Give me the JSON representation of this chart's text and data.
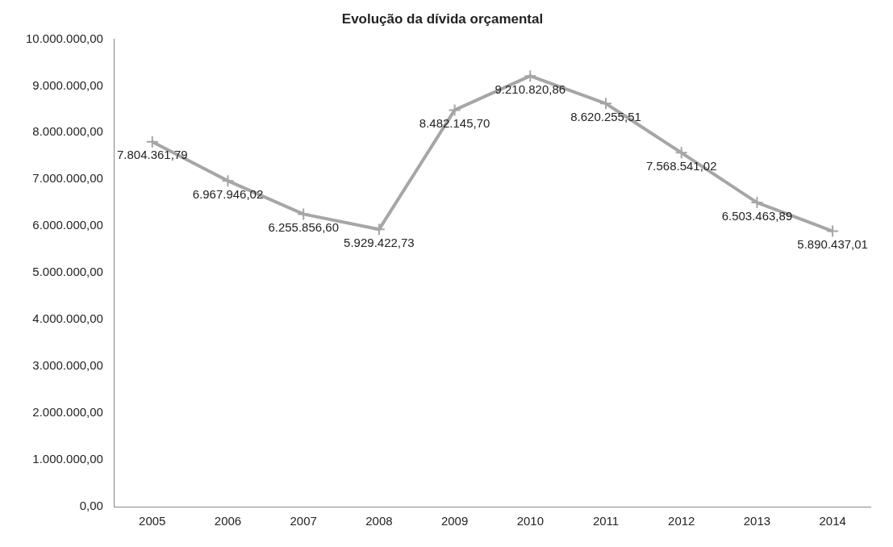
{
  "chart_data": {
    "type": "line",
    "title": "Evolução da dívida orçamental",
    "categories": [
      "2005",
      "2006",
      "2007",
      "2008",
      "2009",
      "2010",
      "2011",
      "2012",
      "2013",
      "2014"
    ],
    "series": [
      {
        "color": "#a6a6a6",
        "values": [
          7804361.79,
          6967946.02,
          6255856.6,
          5929422.73,
          8482145.7,
          9210820.86,
          8620255.51,
          7568541.02,
          6503463.89,
          5890437.01
        ],
        "value_labels": [
          "7.804.361,79",
          "6.967.946,02",
          "6.255.856,60",
          "5.929.422,73",
          "8.482.145,70",
          "9.210.820,86",
          "8.620.255,51",
          "7.568.541,02",
          "6.503.463,89",
          "5.890.437,01"
        ]
      }
    ],
    "ylim": [
      0,
      10000000
    ],
    "yticks": [
      {
        "value": 0,
        "label": "0,00"
      },
      {
        "value": 1000000,
        "label": "1.000.000,00"
      },
      {
        "value": 2000000,
        "label": "2.000.000,00"
      },
      {
        "value": 3000000,
        "label": "3.000.000,00"
      },
      {
        "value": 4000000,
        "label": "4.000.000,00"
      },
      {
        "value": 5000000,
        "label": "5.000.000,00"
      },
      {
        "value": 6000000,
        "label": "6.000.000,00"
      },
      {
        "value": 7000000,
        "label": "7.000.000,00"
      },
      {
        "value": 8000000,
        "label": "8.000.000,00"
      },
      {
        "value": 9000000,
        "label": "9.000.000,00"
      },
      {
        "value": 10000000,
        "label": "10.000.000,00"
      }
    ],
    "grid": false,
    "legend": false,
    "marker": "cross",
    "line_style": "solid"
  }
}
